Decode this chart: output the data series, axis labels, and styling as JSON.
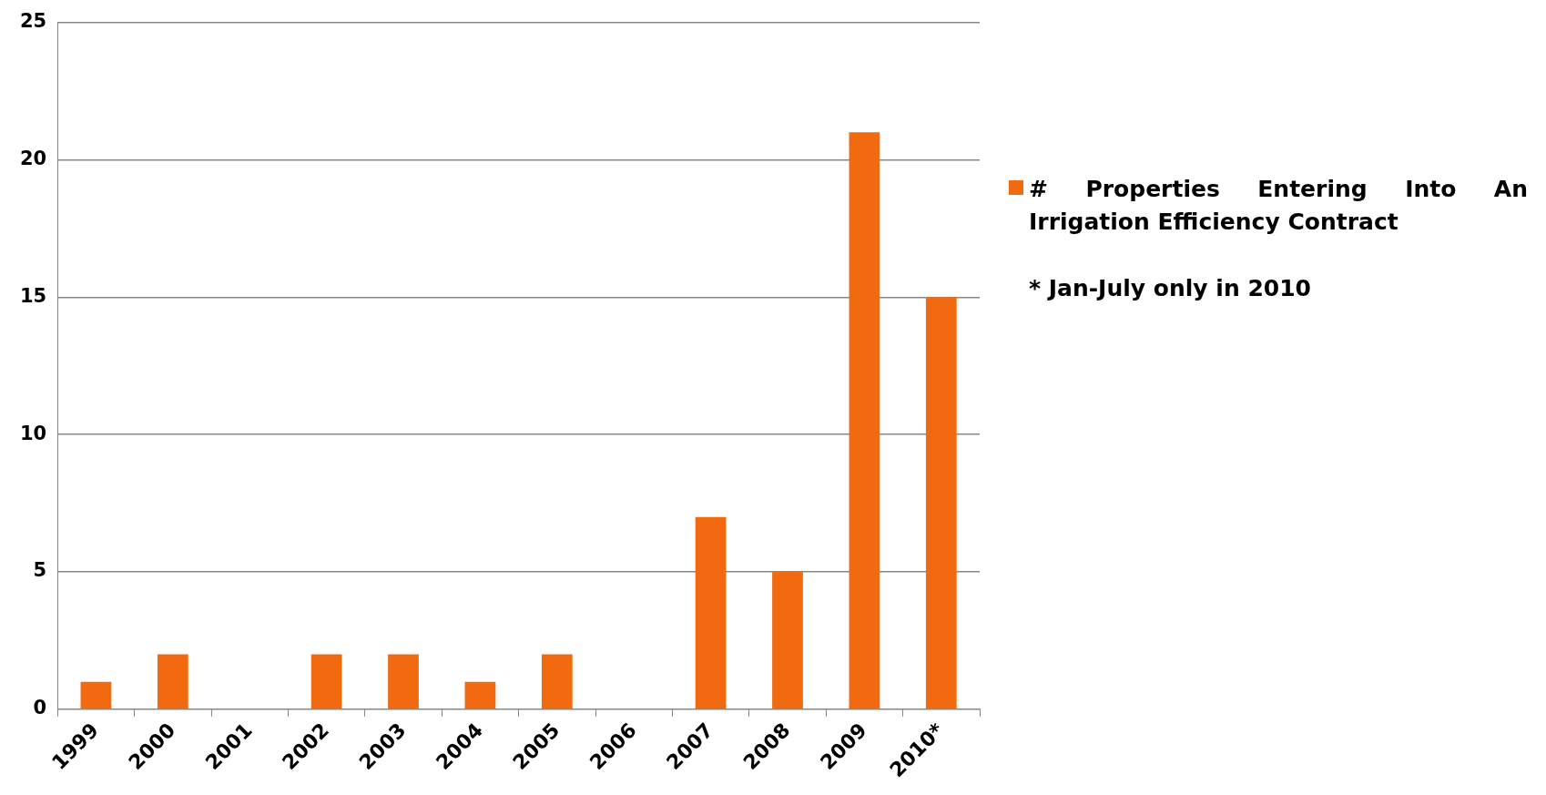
{
  "chart_data": {
    "type": "bar",
    "categories": [
      "1999",
      "2000",
      "2001",
      "2002",
      "2003",
      "2004",
      "2005",
      "2006",
      "2007",
      "2008",
      "2009",
      "2010*"
    ],
    "series": [
      {
        "name": "# Properties Entering Into An Irrigation Efficiency Contract",
        "color": "#f26a0f",
        "values": [
          1,
          2,
          0,
          2,
          2,
          1,
          2,
          0,
          7,
          5,
          21,
          15
        ]
      }
    ],
    "ylim": [
      0,
      25
    ],
    "yticks": [
      0,
      5,
      10,
      15,
      20,
      25
    ],
    "grid": "y",
    "legend": "right",
    "annotations": [
      "* Jan-July  only in 2010"
    ]
  }
}
